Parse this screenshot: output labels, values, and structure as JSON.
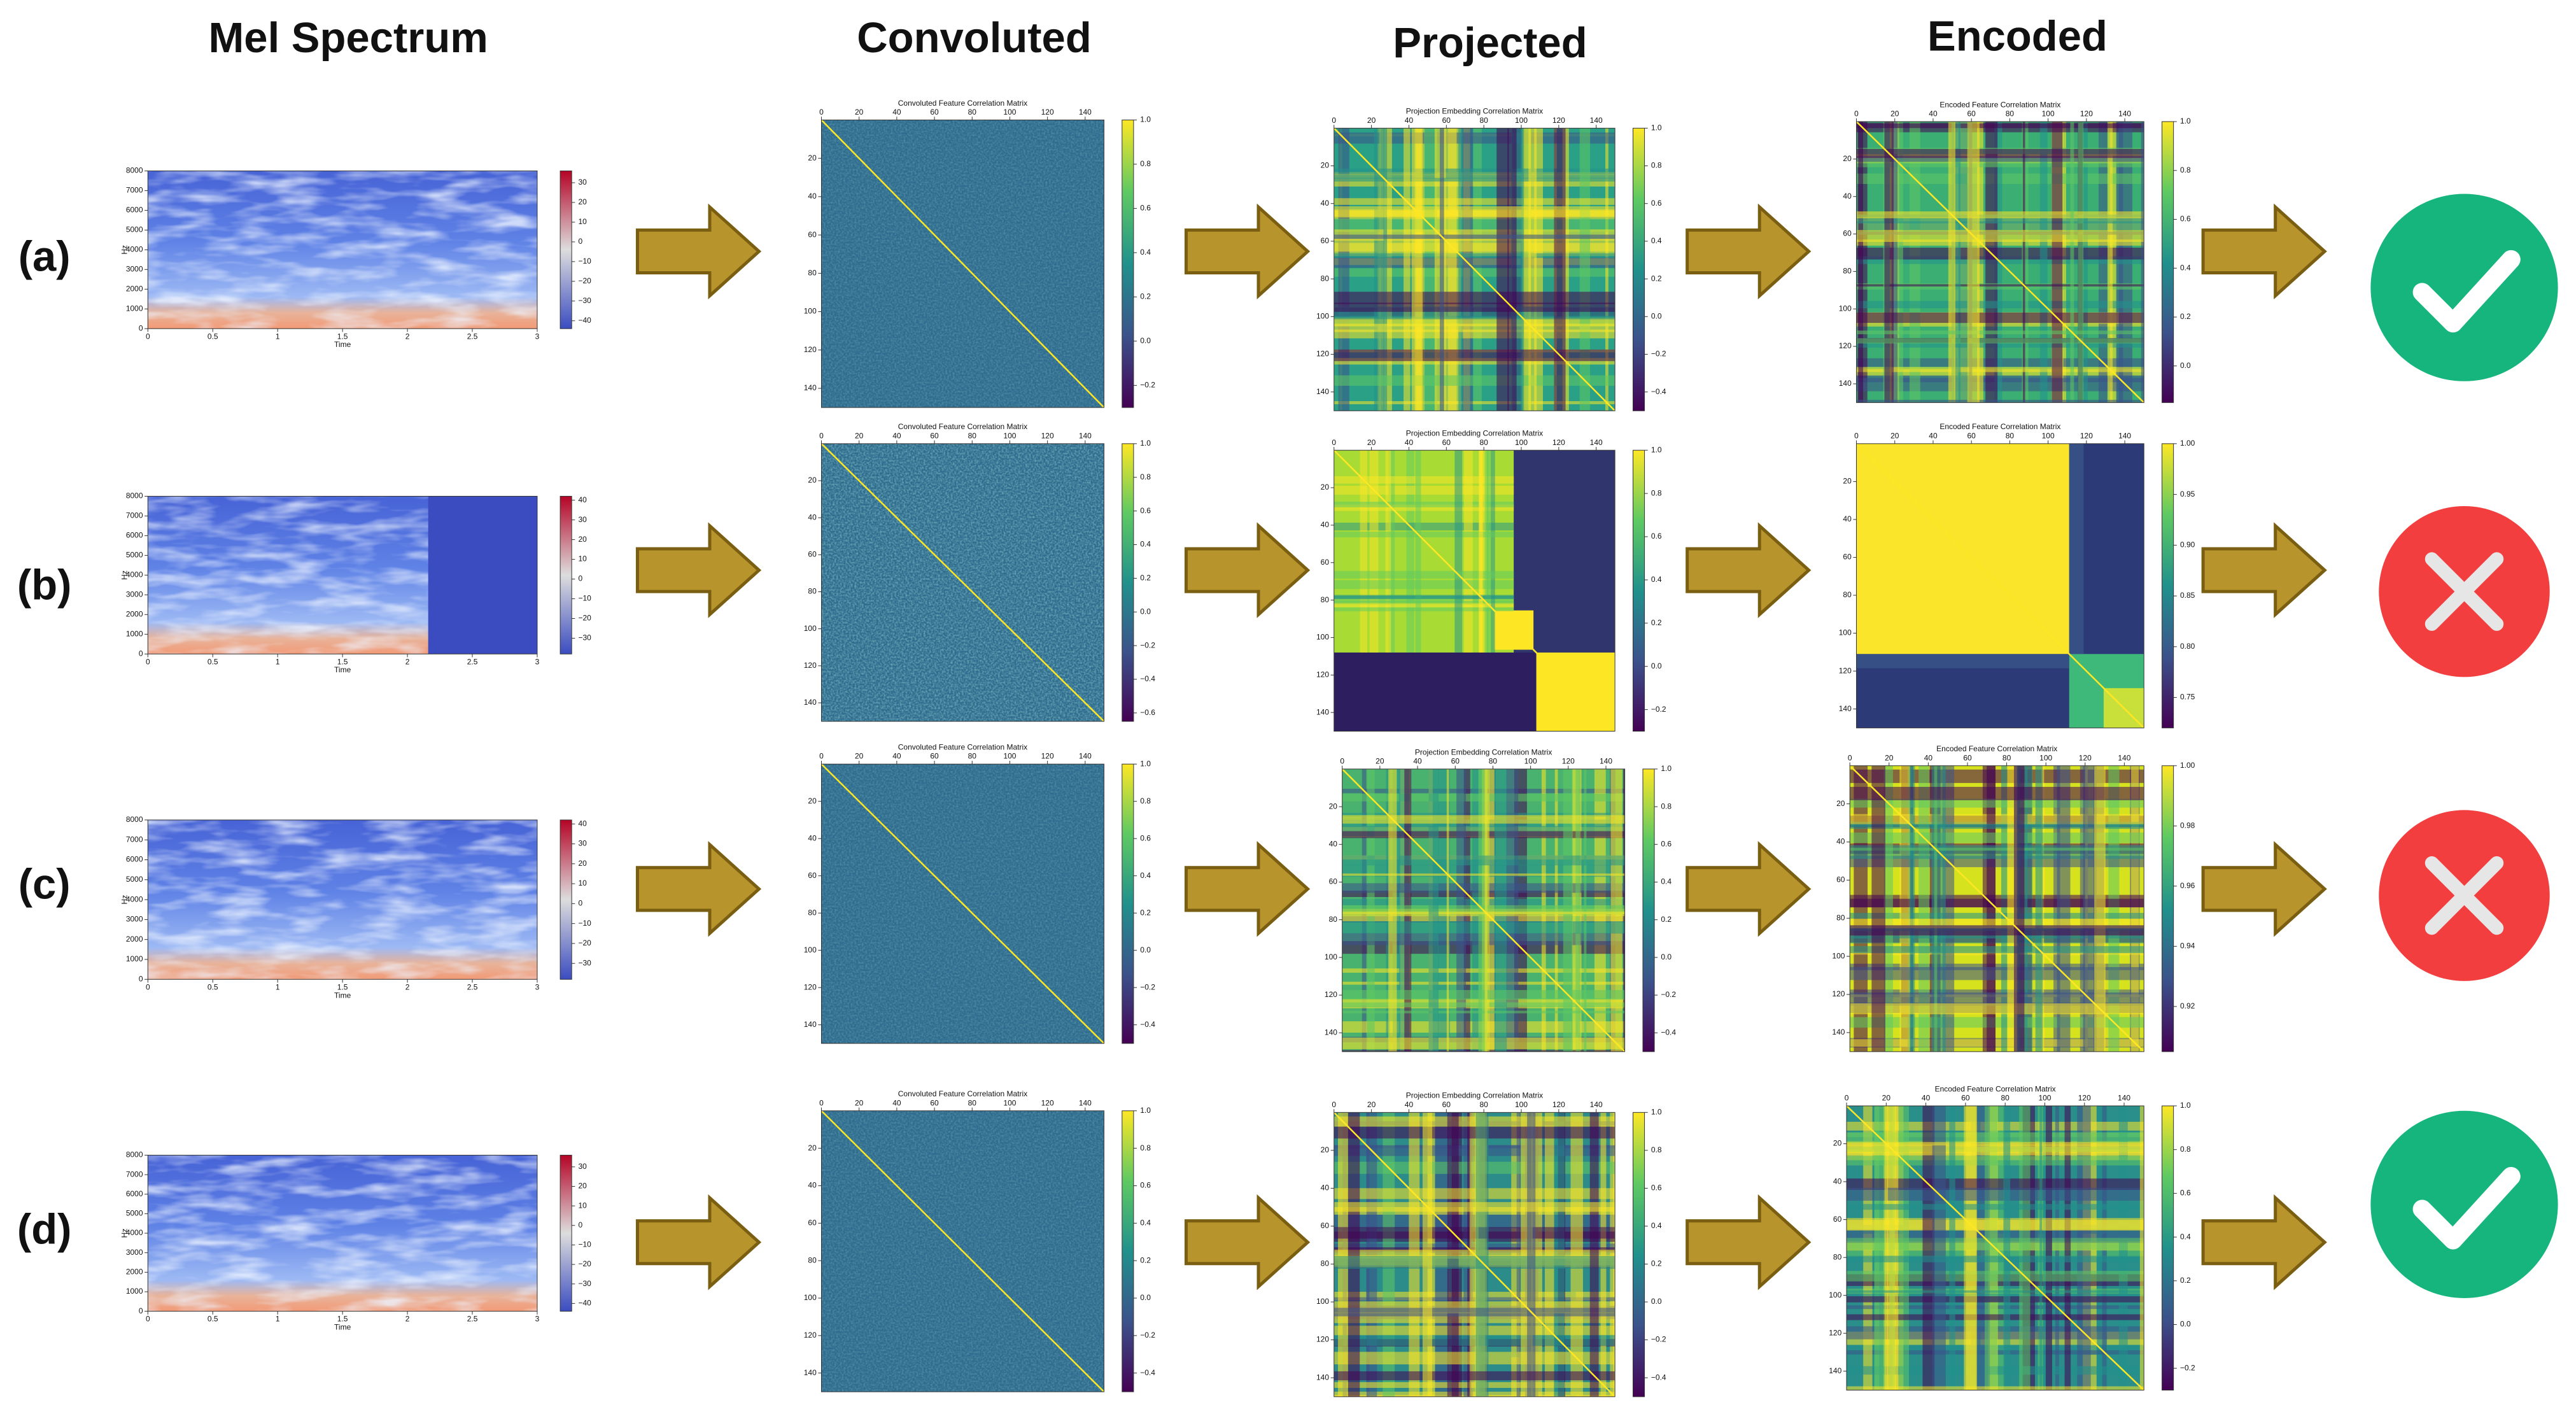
{
  "columns": [
    "Mel Spectrum",
    "Convoluted",
    "Projected",
    "Encoded"
  ],
  "matrix_titles": {
    "convoluted": "Convoluted Feature Correlation Matrix",
    "projected": "Projection Embedding Correlation Matrix",
    "encoded": "Encoded Feature Correlation Matrix"
  },
  "matrix_axis": {
    "lim": [
      0,
      150
    ],
    "xticks": [
      0,
      20,
      40,
      60,
      80,
      100,
      120,
      140
    ],
    "yticks": [
      20,
      40,
      60,
      80,
      100,
      120,
      140
    ]
  },
  "spectrum_axis": {
    "xlim": [
      0,
      3
    ],
    "xticks": [
      0,
      0.5,
      1,
      1.5,
      2,
      2.5,
      3
    ],
    "xlabel": "Time",
    "ylim": [
      0,
      8000
    ],
    "yticks": [
      0,
      1000,
      2000,
      3000,
      4000,
      5000,
      6000,
      7000,
      8000
    ],
    "ylabel": "Hz"
  },
  "rows": [
    {
      "label": "(a)",
      "outcome": "check",
      "spectrum_clim": [
        -44,
        36
      ],
      "spectrum_cticks": [
        30,
        20,
        10,
        0,
        {
          "value": -10,
          "label": "−10"
        },
        {
          "value": -20,
          "label": "−20"
        },
        {
          "value": -30,
          "label": "−30"
        },
        {
          "value": -40,
          "label": "−40"
        }
      ],
      "convoluted": {
        "clim": [
          -0.3,
          1
        ],
        "cticks": [
          {
            "value": 1,
            "label": "1.0"
          },
          0.8,
          0.6,
          0.4,
          0.2,
          {
            "value": 0,
            "label": "0.0"
          },
          {
            "value": -0.2,
            "label": "−0.2"
          }
        ]
      },
      "projected": {
        "clim": [
          -0.5,
          1
        ],
        "cticks": [
          {
            "value": 1,
            "label": "1.0"
          },
          0.8,
          0.6,
          0.4,
          0.2,
          {
            "value": 0,
            "label": "0.0"
          },
          {
            "value": -0.2,
            "label": "−0.2"
          },
          {
            "value": -0.4,
            "label": "−0.4"
          }
        ]
      },
      "encoded": {
        "clim": [
          -0.15,
          1
        ],
        "cticks": [
          {
            "value": 1,
            "label": "1.0"
          },
          0.8,
          0.6,
          0.4,
          0.2,
          {
            "value": 0,
            "label": "0.0"
          }
        ]
      }
    },
    {
      "label": "(b)",
      "outcome": "cross",
      "spectrum_clim": [
        -38,
        42
      ],
      "spectrum_cticks": [
        40,
        30,
        20,
        10,
        0,
        {
          "value": -10,
          "label": "−10"
        },
        {
          "value": -20,
          "label": "−20"
        },
        {
          "value": -30,
          "label": "−30"
        }
      ],
      "convoluted": {
        "clim": [
          -0.65,
          1
        ],
        "cticks": [
          {
            "value": 1,
            "label": "1.0"
          },
          0.8,
          0.6,
          0.4,
          0.2,
          {
            "value": 0,
            "label": "0.0"
          },
          {
            "value": -0.2,
            "label": "−0.2"
          },
          {
            "value": -0.4,
            "label": "−0.4"
          },
          {
            "value": -0.6,
            "label": "−0.6"
          }
        ]
      },
      "projected": {
        "clim": [
          -0.3,
          1
        ],
        "cticks": [
          {
            "value": 1,
            "label": "1.0"
          },
          0.8,
          0.6,
          0.4,
          0.2,
          {
            "value": 0,
            "label": "0.0"
          },
          {
            "value": -0.2,
            "label": "−0.2"
          }
        ]
      },
      "encoded": {
        "clim": [
          0.72,
          1
        ],
        "cticks": [
          {
            "value": 1,
            "label": "1.00"
          },
          0.95,
          {
            "value": 0.9,
            "label": "0.90"
          },
          0.85,
          {
            "value": 0.8,
            "label": "0.80"
          },
          0.75
        ]
      }
    },
    {
      "label": "(c)",
      "outcome": "cross",
      "spectrum_clim": [
        -38,
        42
      ],
      "spectrum_cticks": [
        40,
        30,
        20,
        10,
        0,
        {
          "value": -10,
          "label": "−10"
        },
        {
          "value": -20,
          "label": "−20"
        },
        {
          "value": -30,
          "label": "−30"
        }
      ],
      "convoluted": {
        "clim": [
          -0.5,
          1
        ],
        "cticks": [
          {
            "value": 1,
            "label": "1.0"
          },
          0.8,
          0.6,
          0.4,
          0.2,
          {
            "value": 0,
            "label": "0.0"
          },
          {
            "value": -0.2,
            "label": "−0.2"
          },
          {
            "value": -0.4,
            "label": "−0.4"
          }
        ]
      },
      "projected": {
        "clim": [
          -0.5,
          1
        ],
        "cticks": [
          {
            "value": 1,
            "label": "1.0"
          },
          0.8,
          0.6,
          0.4,
          0.2,
          {
            "value": 0,
            "label": "0.0"
          },
          {
            "value": -0.2,
            "label": "−0.2"
          },
          {
            "value": -0.4,
            "label": "−0.4"
          }
        ]
      },
      "encoded": {
        "clim": [
          0.905,
          1
        ],
        "cticks": [
          {
            "value": 1,
            "label": "1.00"
          },
          0.98,
          0.96,
          0.94,
          0.92
        ]
      }
    },
    {
      "label": "(d)",
      "outcome": "check",
      "spectrum_clim": [
        -44,
        36
      ],
      "spectrum_cticks": [
        30,
        20,
        10,
        0,
        {
          "value": -10,
          "label": "−10"
        },
        {
          "value": -20,
          "label": "−20"
        },
        {
          "value": -30,
          "label": "−30"
        },
        {
          "value": -40,
          "label": "−40"
        }
      ],
      "convoluted": {
        "clim": [
          -0.5,
          1
        ],
        "cticks": [
          {
            "value": 1,
            "label": "1.0"
          },
          0.8,
          0.6,
          0.4,
          0.2,
          {
            "value": 0,
            "label": "0.0"
          },
          {
            "value": -0.2,
            "label": "−0.2"
          },
          {
            "value": -0.4,
            "label": "−0.4"
          }
        ]
      },
      "projected": {
        "clim": [
          -0.5,
          1
        ],
        "cticks": [
          {
            "value": 1,
            "label": "1.0"
          },
          0.8,
          0.6,
          0.4,
          0.2,
          {
            "value": 0,
            "label": "0.0"
          },
          {
            "value": -0.2,
            "label": "−0.2"
          },
          {
            "value": -0.4,
            "label": "−0.4"
          }
        ]
      },
      "encoded": {
        "clim": [
          -0.3,
          1
        ],
        "cticks": [
          {
            "value": 1,
            "label": "1.0"
          },
          0.8,
          0.6,
          0.4,
          0.2,
          {
            "value": 0,
            "label": "0.0"
          },
          {
            "value": -0.2,
            "label": "−0.2"
          }
        ]
      }
    }
  ]
}
